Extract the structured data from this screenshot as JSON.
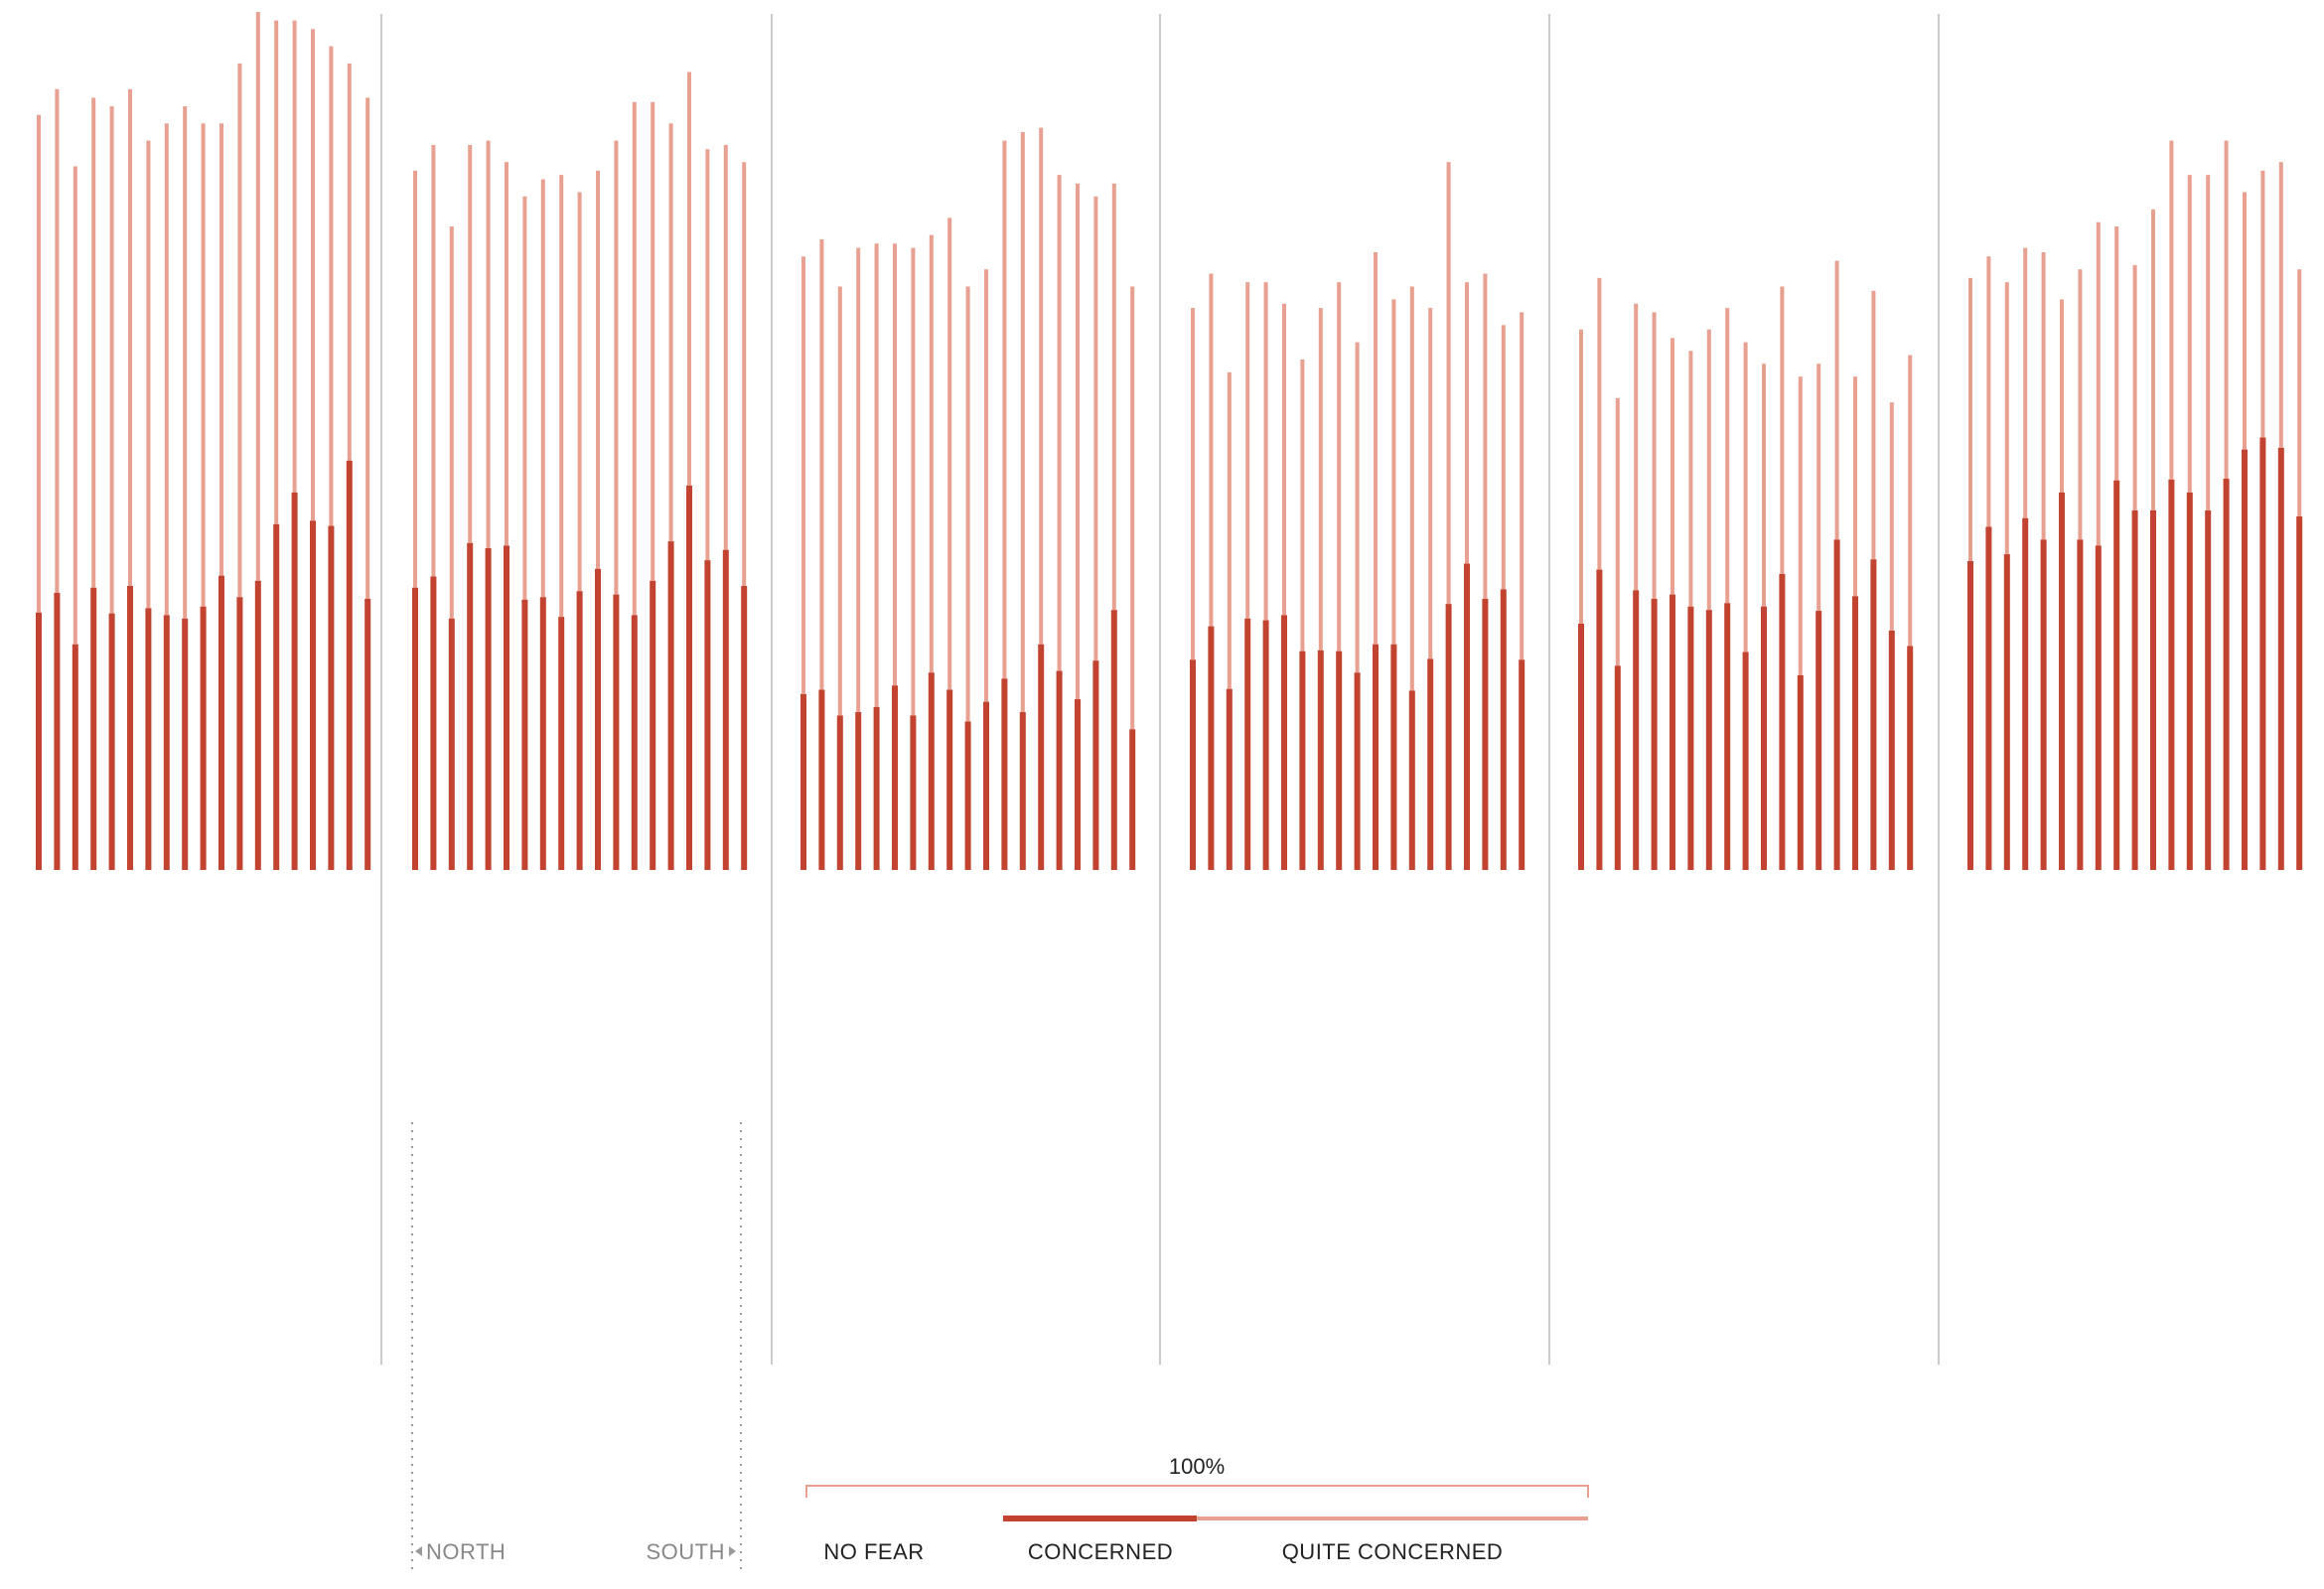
{
  "colors": {
    "concerned": "#c2432f",
    "quite_concerned": "#e8a090",
    "divider": "#b8b8b8",
    "guide": "#999999"
  },
  "chart_data": {
    "type": "bar",
    "stacked": true,
    "grid": false,
    "ylim": [
      0,
      100
    ],
    "series_names": [
      "CONCERNED",
      "QUITE CONCERNED"
    ],
    "panels": [
      {
        "concerned": [
          30.0,
          32.3,
          26.3,
          32.9,
          29.9,
          33.1,
          30.5,
          29.7,
          29.3,
          30.7,
          34.3,
          31.8,
          33.7,
          40.3,
          44.0,
          40.7,
          40.1,
          47.7,
          31.6
        ],
        "quite_concerned": [
          88.0,
          91.0,
          82.0,
          90.0,
          89.0,
          91.0,
          85.0,
          87.0,
          89.0,
          87.0,
          87.0,
          94.0,
          100.0,
          99.0,
          99.0,
          98.0,
          96.0,
          94.0,
          90.0
        ]
      },
      {
        "concerned": [
          32.9,
          34.2,
          29.3,
          38.1,
          37.5,
          37.8,
          31.5,
          31.8,
          29.5,
          32.5,
          35.1,
          32.1,
          29.7,
          33.7,
          38.3,
          44.8,
          36.1,
          37.3,
          33.1
        ],
        "quite_concerned": [
          81.5,
          84.5,
          75.0,
          84.5,
          85.0,
          82.5,
          78.5,
          80.5,
          81.0,
          79.0,
          81.5,
          85.0,
          89.5,
          89.5,
          87.0,
          93.0,
          84.0,
          84.5,
          82.5
        ]
      },
      {
        "concerned": [
          20.5,
          21.0,
          18.0,
          18.4,
          19.0,
          21.5,
          18.0,
          23.0,
          21.0,
          17.3,
          19.6,
          22.3,
          18.4,
          26.3,
          23.2,
          19.9,
          24.4,
          30.3,
          16.4
        ],
        "quite_concerned": [
          71.5,
          73.5,
          68.0,
          72.5,
          73.0,
          73.0,
          72.5,
          74.0,
          76.0,
          68.0,
          70.0,
          85.0,
          86.0,
          86.5,
          81.0,
          80.0,
          78.5,
          80.0,
          68.0
        ]
      },
      {
        "concerned": [
          24.5,
          28.4,
          21.1,
          29.3,
          29.1,
          29.7,
          25.5,
          25.6,
          25.5,
          23.0,
          26.3,
          26.3,
          20.9,
          24.6,
          31.0,
          35.7,
          31.6,
          32.7,
          24.5
        ],
        "quite_concerned": [
          65.5,
          69.5,
          58.0,
          68.5,
          68.5,
          66.0,
          59.5,
          65.5,
          68.5,
          61.5,
          72.0,
          66.5,
          68.0,
          65.5,
          82.5,
          68.5,
          69.5,
          63.5,
          65.0
        ]
      },
      {
        "concerned": [
          28.7,
          35.0,
          23.8,
          32.6,
          31.6,
          32.1,
          30.7,
          30.3,
          31.1,
          25.4,
          30.7,
          34.5,
          22.7,
          30.2,
          38.5,
          31.9,
          36.2,
          27.9,
          26.1
        ],
        "quite_concerned": [
          63.0,
          69.0,
          55.0,
          66.0,
          65.0,
          62.0,
          60.5,
          63.0,
          65.5,
          61.5,
          59.0,
          68.0,
          57.5,
          59.0,
          71.0,
          57.5,
          67.5,
          54.5,
          60.0
        ]
      },
      {
        "concerned": [
          36.0,
          40.0,
          36.8,
          41.0,
          38.5,
          44.0,
          38.5,
          37.8,
          45.4,
          41.9,
          41.9,
          45.5,
          44.0,
          41.9,
          45.6,
          49.0,
          50.4,
          49.2,
          41.2
        ],
        "quite_concerned": [
          69.0,
          71.5,
          68.5,
          72.5,
          72.0,
          66.5,
          70.0,
          75.5,
          75.0,
          70.5,
          77.0,
          85.0,
          81.0,
          81.0,
          85.0,
          79.0,
          81.5,
          82.5,
          70.0
        ]
      }
    ],
    "legend": {
      "total": "100%",
      "no_fear": "NO FEAR",
      "concerned": "CONCERNED",
      "quite_concerned": "QUITE CONCERNED"
    },
    "axis": {
      "north": "NORTH",
      "south": "SOUTH"
    }
  }
}
